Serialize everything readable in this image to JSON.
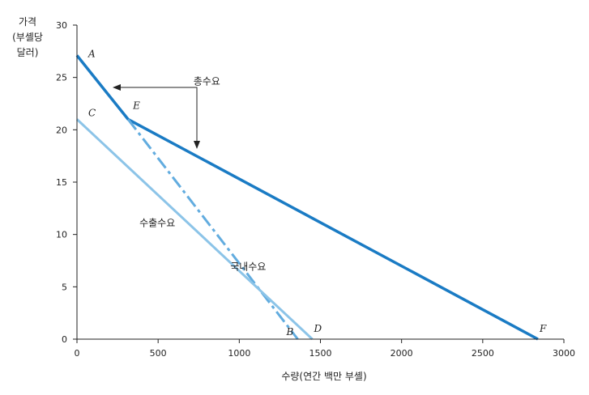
{
  "chart_data": {
    "type": "line",
    "xlabel": "수량(연간 백만 부셸)",
    "ylabel_lines": [
      "가격",
      "(부셸당",
      "달러)"
    ],
    "xlim": [
      0,
      3000
    ],
    "ylim": [
      0,
      30
    ],
    "x_ticks": [
      0,
      500,
      1000,
      1500,
      2000,
      2500,
      3000
    ],
    "y_ticks": [
      0,
      5,
      10,
      15,
      20,
      25,
      30
    ],
    "grid": false,
    "series": [
      {
        "name": "총수요",
        "style": "solid",
        "color": "#1a7bc4",
        "width": 3.5,
        "points": [
          [
            0,
            27.1
          ],
          [
            315,
            21
          ],
          [
            2840,
            0
          ]
        ]
      },
      {
        "name": "국내수요",
        "style": "dashdot",
        "color": "#62acdf",
        "width": 3,
        "points": [
          [
            315,
            21
          ],
          [
            1360,
            0
          ]
        ]
      },
      {
        "name": "수출수요",
        "style": "solid",
        "color": "#8cc4e8",
        "width": 3,
        "points": [
          [
            0,
            21
          ],
          [
            1450,
            0
          ]
        ]
      }
    ],
    "point_labels": [
      {
        "text": "A",
        "x": 0,
        "y": 27.1
      },
      {
        "text": "C",
        "x": 0,
        "y": 21
      },
      {
        "text": "E",
        "x": 315,
        "y": 21
      },
      {
        "text": "B",
        "x": 1360,
        "y": 0
      },
      {
        "text": "D",
        "x": 1450,
        "y": 0
      },
      {
        "text": "F",
        "x": 2840,
        "y": 0
      }
    ],
    "annotations": [
      {
        "text": "총수요",
        "x": 800,
        "y": 24.3
      },
      {
        "text": "수출수요",
        "x": 495,
        "y": 10.8
      },
      {
        "text": "국내수요",
        "x": 1055,
        "y": 6.6
      }
    ]
  }
}
